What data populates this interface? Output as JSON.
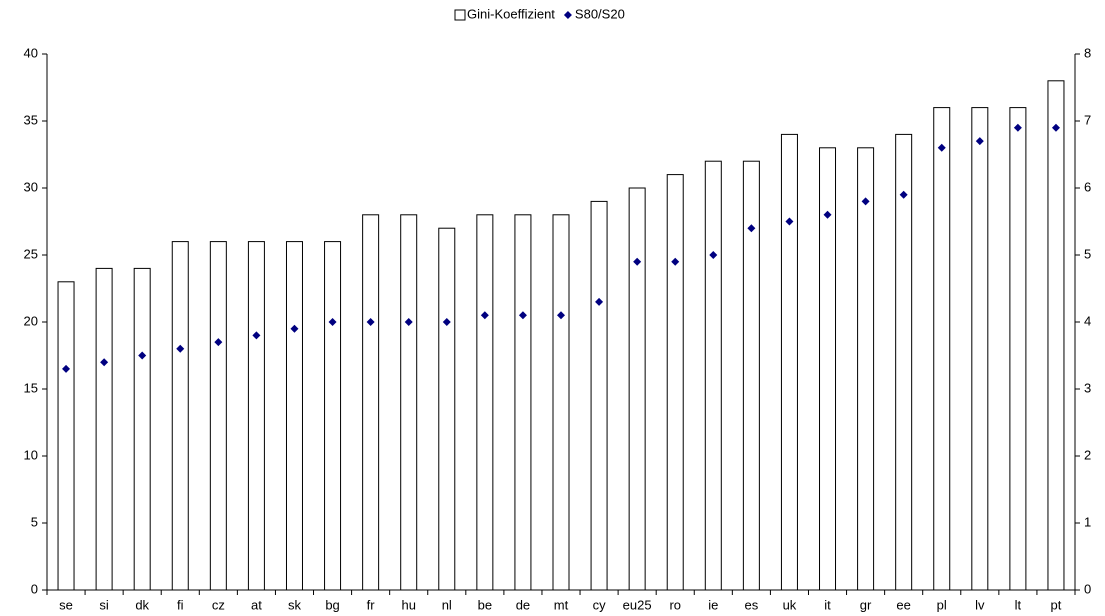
{
  "chart_data": {
    "type": "bar",
    "categories": [
      "se",
      "si",
      "dk",
      "fi",
      "cz",
      "at",
      "sk",
      "bg",
      "fr",
      "hu",
      "nl",
      "be",
      "de",
      "mt",
      "cy",
      "eu25",
      "ro",
      "ie",
      "es",
      "uk",
      "it",
      "gr",
      "ee",
      "pl",
      "lv",
      "lt",
      "pt"
    ],
    "series": [
      {
        "name": "Gini-Koeffizient",
        "type": "bar",
        "color": "#ffffff",
        "stroke": "#000000",
        "values": [
          23,
          24,
          24,
          26,
          26,
          26,
          26,
          26,
          28,
          28,
          27,
          28,
          28,
          28,
          29,
          30,
          31,
          32,
          32,
          34,
          33,
          33,
          34,
          36,
          36,
          36,
          38
        ]
      },
      {
        "name": "S80/S20",
        "type": "scatter",
        "axis": "y2",
        "color": "#000080",
        "values": [
          3.3,
          3.4,
          3.5,
          3.6,
          3.7,
          3.8,
          3.9,
          4.0,
          4.0,
          4.0,
          4.0,
          4.1,
          4.1,
          4.1,
          4.3,
          4.9,
          4.9,
          5.0,
          5.4,
          5.5,
          5.6,
          5.8,
          5.9,
          6.6,
          6.7,
          6.9,
          6.9
        ]
      }
    ],
    "ylim": [
      0,
      40
    ],
    "yticks": [
      0,
      5,
      10,
      15,
      20,
      25,
      30,
      35,
      40
    ],
    "y2lim": [
      0,
      8
    ],
    "y2ticks": [
      0,
      1,
      2,
      3,
      4,
      5,
      6,
      7,
      8
    ],
    "legend": "top",
    "grid": false
  }
}
